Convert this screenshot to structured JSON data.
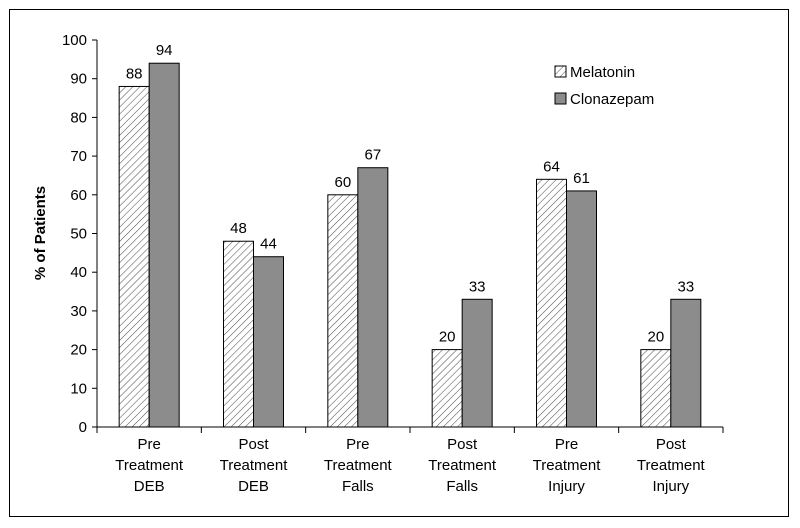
{
  "colors": {
    "melatonin_fill": "#ffffff",
    "hatch_line": "#555555",
    "clonazepam_fill": "#8c8c8c",
    "stroke": "#000000"
  },
  "chart_data": {
    "type": "bar",
    "title": "",
    "xlabel": "",
    "ylabel": "% of Patients",
    "ylim": [
      0,
      100
    ],
    "yticks": [
      0,
      10,
      20,
      30,
      40,
      50,
      60,
      70,
      80,
      90,
      100
    ],
    "categories": [
      [
        "Pre",
        "Treatment",
        "DEB"
      ],
      [
        "Post",
        "Treatment",
        "DEB"
      ],
      [
        "Pre",
        "Treatment",
        "Falls"
      ],
      [
        "Post",
        "Treatment",
        "Falls"
      ],
      [
        "Pre",
        "Treatment",
        "Injury"
      ],
      [
        "Post",
        "Treatment",
        "Injury"
      ]
    ],
    "series": [
      {
        "name": "Melatonin",
        "pattern": "hatched",
        "values": [
          88,
          48,
          60,
          20,
          64,
          20
        ]
      },
      {
        "name": "Clonazepam",
        "pattern": "solid-gray",
        "values": [
          94,
          44,
          67,
          33,
          61,
          33
        ]
      }
    ],
    "legend": "top-right",
    "grid": false
  }
}
